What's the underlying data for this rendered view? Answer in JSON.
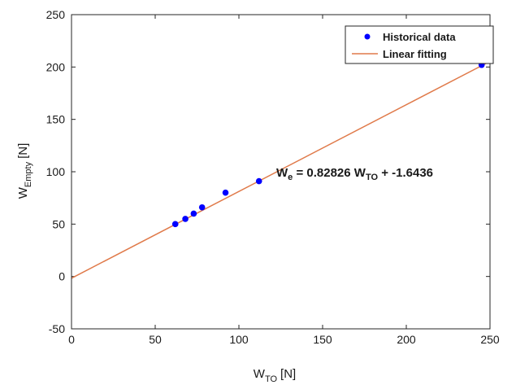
{
  "chart_data": {
    "type": "scatter",
    "xlabel": {
      "main": "W",
      "sub": "TO",
      "unit": "[N]"
    },
    "ylabel": {
      "main": "W",
      "sub": "Empty",
      "unit": "[N]"
    },
    "xlim": [
      0,
      250
    ],
    "ylim": [
      -50,
      250
    ],
    "xticks": [
      0,
      50,
      100,
      150,
      200,
      250
    ],
    "yticks": [
      -50,
      0,
      50,
      100,
      150,
      200,
      250
    ],
    "grid": false,
    "legend_position": "top-right",
    "series": [
      {
        "name": "Historical data",
        "kind": "scatter",
        "color": "#0000ff",
        "x": [
          62,
          68,
          73,
          78,
          92,
          112,
          245
        ],
        "y": [
          50,
          55,
          60,
          66,
          80,
          91,
          202
        ]
      },
      {
        "name": "Linear fitting",
        "kind": "line",
        "color": "#e07a4a",
        "x": [
          0,
          250
        ],
        "y": [
          -1.6436,
          205.42
        ]
      }
    ],
    "annotation": {
      "w": "W",
      "w_sub": "e",
      "mid": " = 0.82826 W",
      "mid_sub": "TO",
      "tail": " + -1.6436",
      "x": 147,
      "y": 100
    }
  }
}
